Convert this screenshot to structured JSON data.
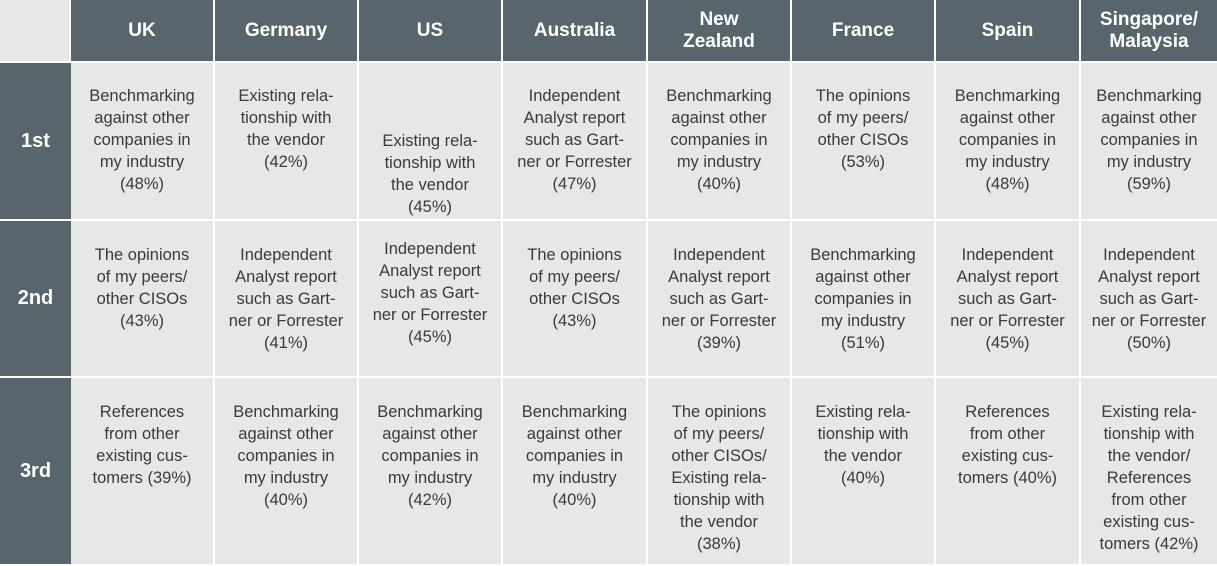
{
  "countries": [
    "UK",
    "Germany",
    "US",
    "Australia",
    "New\nZealand",
    "France",
    "Spain",
    "Singapore/\nMalaysia"
  ],
  "ranks": [
    "1st",
    "2nd",
    "3rd"
  ],
  "rows": [
    [
      "Benchmarking\nagainst other\ncompanies in\nmy industry\n(48%)",
      "Existing rela-\ntionship with\nthe vendor\n(42%)",
      "Existing rela-\ntionship with\nthe vendor\n(45%)",
      "Independent\nAnalyst report\nsuch as Gart-\nner or Forrester\n(47%)",
      "Benchmarking\nagainst other\ncompanies in\nmy industry\n(40%)",
      "The opinions\nof my peers/\nother CISOs\n(53%)",
      "Benchmarking\nagainst other\ncompanies in\nmy industry\n(48%)",
      "Benchmarking\nagainst other\ncompanies in\nmy industry\n(59%)"
    ],
    [
      "The opinions\nof my peers/\nother CISOs\n(43%)",
      "Independent\nAnalyst report\nsuch as Gart-\nner or Forrester\n(41%)",
      "Independent\nAnalyst report\nsuch as Gart-\nner or Forrester\n(45%)",
      "The opinions\nof my peers/\nother CISOs\n(43%)",
      "Independent\nAnalyst report\nsuch as Gart-\nner or Forrester\n(39%)",
      "Benchmarking\nagainst other\ncompanies in\nmy industry\n(51%)",
      "Independent\nAnalyst report\nsuch as Gart-\nner or Forrester\n(45%)",
      "Independent\nAnalyst report\nsuch as Gart-\nner or Forrester\n(50%)"
    ],
    [
      "References\nfrom other\nexisting cus-\ntomers (39%)",
      "Benchmarking\nagainst other\ncompanies in\nmy industry\n(40%)",
      "Benchmarking\nagainst other\ncompanies in\nmy industry\n(42%)",
      "Benchmarking\nagainst other\ncompanies in\nmy industry\n(40%)",
      "The opinions\nof my peers/\nother CISOs/\nExisting rela-\ntionship with\nthe vendor\n(38%)",
      "Existing rela-\ntionship with\nthe vendor\n(40%)",
      "References\nfrom other\nexisting cus-\ntomers (40%)",
      "Existing rela-\ntionship with\nthe vendor/\nReferences\nfrom other\nexisting cus-\ntomers (42%)"
    ]
  ],
  "colors": {
    "header_bg": "#58656c",
    "cell_bg": "#e6e7e8",
    "text": "#3a3a3a",
    "header_text": "#ffffff"
  }
}
